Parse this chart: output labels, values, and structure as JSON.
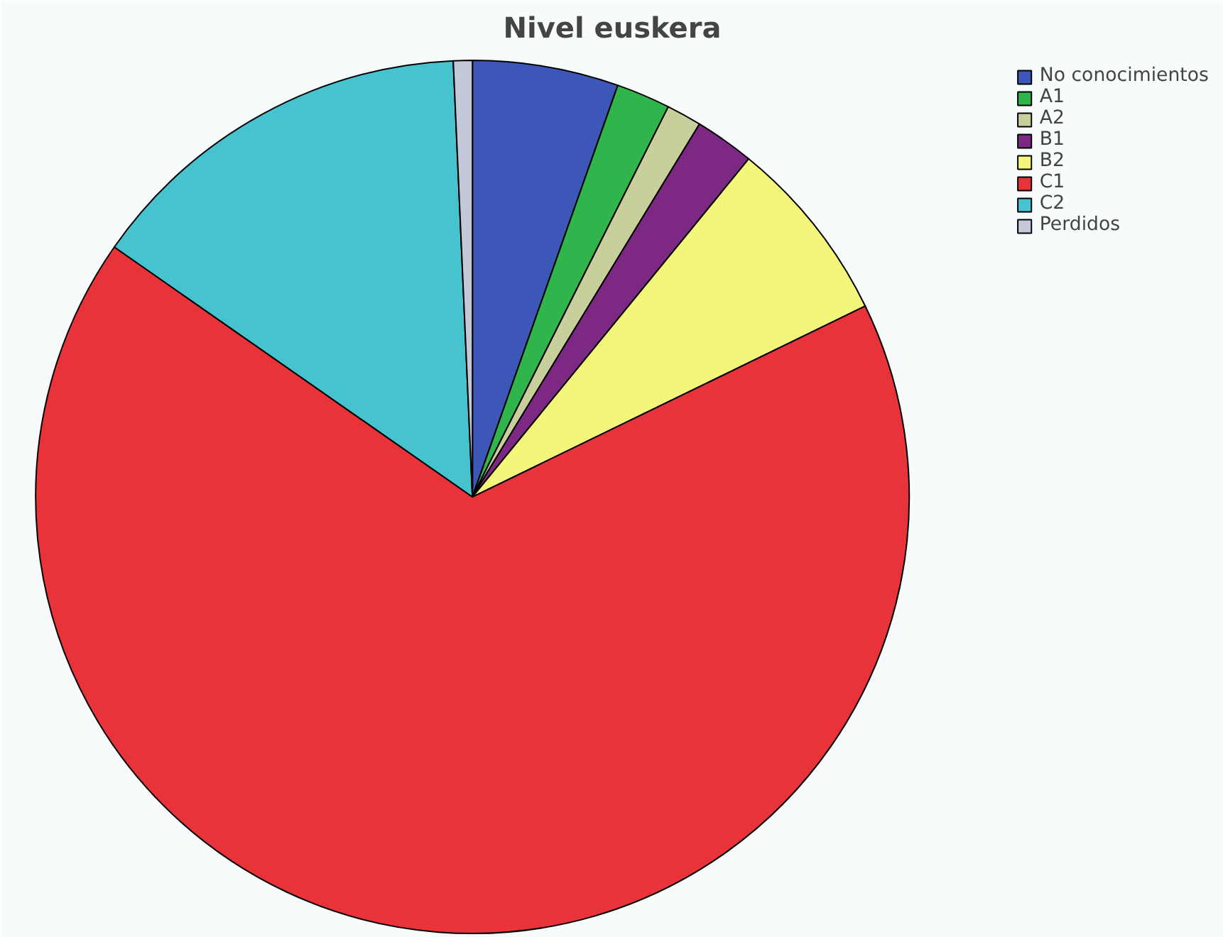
{
  "chart_data": {
    "type": "pie",
    "title": "Nivel euskera",
    "categories": [
      "No conocimientos",
      "A1",
      "A2",
      "B1",
      "B2",
      "C1",
      "C2",
      "Perdidos"
    ],
    "values": [
      5.4,
      2,
      1.3,
      2.2,
      6.9,
      66.9,
      14.6,
      0.7
    ],
    "colors": [
      "#3d57b8",
      "#2fb54b",
      "#c9cf9c",
      "#7d2882",
      "#f4f67b",
      "#e8333b",
      "#46c3ce",
      "#c3c9d9"
    ],
    "legend": "top right"
  }
}
